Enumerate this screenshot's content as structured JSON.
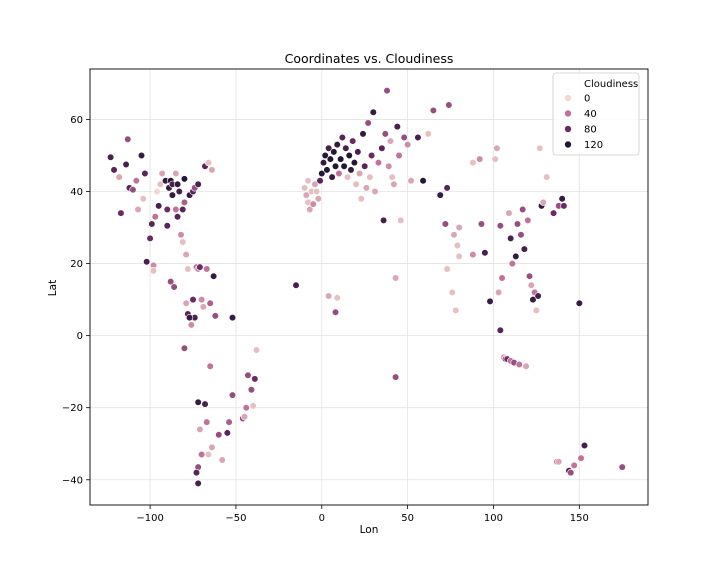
{
  "chart_data": {
    "type": "scatter",
    "title": "Coordinates vs. Cloudiness",
    "xlabel": "Lon",
    "ylabel": "Lat",
    "xlim": [
      -135,
      190
    ],
    "ylim": [
      -47,
      74
    ],
    "xticks": [
      -100,
      -50,
      0,
      50,
      100,
      150
    ],
    "yticks": [
      -40,
      -20,
      0,
      20,
      40,
      60
    ],
    "grid": true,
    "legend": {
      "title": "Cloudiness",
      "placement": "top-right",
      "entries": [
        {
          "label": "0",
          "value": 0
        },
        {
          "label": "40",
          "value": 40
        },
        {
          "label": "80",
          "value": 80
        },
        {
          "label": "120",
          "value": 120
        }
      ]
    },
    "hue_scale": {
      "min": 0,
      "max": 120,
      "colors": [
        "#f3d8cf",
        "#c2719a",
        "#6a2a63",
        "#231638"
      ]
    },
    "points": [
      {
        "x": -123,
        "y": 49.5,
        "c": 100
      },
      {
        "x": -121,
        "y": 46,
        "c": 90
      },
      {
        "x": -118,
        "y": 44,
        "c": 20
      },
      {
        "x": -117,
        "y": 34,
        "c": 80
      },
      {
        "x": -114,
        "y": 47.5,
        "c": 100
      },
      {
        "x": -113,
        "y": 54.5,
        "c": 60
      },
      {
        "x": -112,
        "y": 41,
        "c": 90
      },
      {
        "x": -110,
        "y": 40.5,
        "c": 60
      },
      {
        "x": -108,
        "y": 43,
        "c": 40
      },
      {
        "x": -107,
        "y": 35,
        "c": 20
      },
      {
        "x": -105,
        "y": 50,
        "c": 110
      },
      {
        "x": -104,
        "y": 38,
        "c": 10
      },
      {
        "x": -103,
        "y": 45,
        "c": 90
      },
      {
        "x": -102,
        "y": 20.5,
        "c": 100
      },
      {
        "x": -100,
        "y": 27,
        "c": 80
      },
      {
        "x": -99,
        "y": 31,
        "c": 90
      },
      {
        "x": -98,
        "y": 19.5,
        "c": 30
      },
      {
        "x": -98,
        "y": 18,
        "c": 10
      },
      {
        "x": -97,
        "y": 33,
        "c": 40
      },
      {
        "x": -96,
        "y": 40,
        "c": 0
      },
      {
        "x": -95,
        "y": 36,
        "c": 100
      },
      {
        "x": -94,
        "y": 42,
        "c": 10
      },
      {
        "x": -93,
        "y": 45,
        "c": 20
      },
      {
        "x": -91,
        "y": 43,
        "c": 110
      },
      {
        "x": -90,
        "y": 35,
        "c": 80
      },
      {
        "x": -90,
        "y": 30.5,
        "c": 90
      },
      {
        "x": -89,
        "y": 41,
        "c": 110
      },
      {
        "x": -88,
        "y": 43,
        "c": 120
      },
      {
        "x": -88,
        "y": 15,
        "c": 60
      },
      {
        "x": -87,
        "y": 42,
        "c": 100
      },
      {
        "x": -87,
        "y": 39,
        "c": 110
      },
      {
        "x": -86,
        "y": 13.5,
        "c": 60
      },
      {
        "x": -85,
        "y": 45,
        "c": 20
      },
      {
        "x": -85,
        "y": 35,
        "c": 40
      },
      {
        "x": -84,
        "y": 42,
        "c": 110
      },
      {
        "x": -84,
        "y": 33,
        "c": 90
      },
      {
        "x": -83,
        "y": 40,
        "c": 100
      },
      {
        "x": -82,
        "y": 28,
        "c": 30
      },
      {
        "x": -81,
        "y": 26,
        "c": 10
      },
      {
        "x": -81,
        "y": 35,
        "c": 90
      },
      {
        "x": -80,
        "y": 43.5,
        "c": 120
      },
      {
        "x": -80,
        "y": 37,
        "c": 50
      },
      {
        "x": -79,
        "y": 22.5,
        "c": 20
      },
      {
        "x": -78,
        "y": 18.5,
        "c": 10
      },
      {
        "x": -77,
        "y": 39,
        "c": 110
      },
      {
        "x": -76,
        "y": 3,
        "c": 30
      },
      {
        "x": -75,
        "y": 40,
        "c": 90
      },
      {
        "x": -75,
        "y": 10,
        "c": 80
      },
      {
        "x": -74,
        "y": 41,
        "c": 60
      },
      {
        "x": -74,
        "y": 5,
        "c": 100
      },
      {
        "x": -73,
        "y": 19,
        "c": 40
      },
      {
        "x": -72,
        "y": 18.5,
        "c": 30
      },
      {
        "x": -72,
        "y": 42,
        "c": 100
      },
      {
        "x": -71,
        "y": 19,
        "c": 80
      },
      {
        "x": -70,
        "y": 10,
        "c": 30
      },
      {
        "x": -70,
        "y": -33,
        "c": 100
      },
      {
        "x": -69,
        "y": 8,
        "c": 20
      },
      {
        "x": -68,
        "y": 47,
        "c": 90
      },
      {
        "x": -67,
        "y": 18.5,
        "c": 40
      },
      {
        "x": -66,
        "y": 48,
        "c": 10
      },
      {
        "x": -65,
        "y": 9,
        "c": 50
      },
      {
        "x": -64,
        "y": 46,
        "c": 20
      },
      {
        "x": -63,
        "y": 16.5,
        "c": 110
      },
      {
        "x": -62,
        "y": 5.5,
        "c": 60
      },
      {
        "x": -79,
        "y": 9,
        "c": 20
      },
      {
        "x": -78,
        "y": 6,
        "c": 90
      },
      {
        "x": -77,
        "y": 5,
        "c": 110
      },
      {
        "x": -80,
        "y": -3.5,
        "c": 60
      },
      {
        "x": -72,
        "y": -18.5,
        "c": 110
      },
      {
        "x": -71,
        "y": -26,
        "c": 20
      },
      {
        "x": -70,
        "y": -33,
        "c": 40
      },
      {
        "x": -72,
        "y": -36.5,
        "c": 60
      },
      {
        "x": -73,
        "y": -38,
        "c": 90
      },
      {
        "x": -72,
        "y": -41,
        "c": 100
      },
      {
        "x": -68,
        "y": -19,
        "c": 100
      },
      {
        "x": -67,
        "y": -24,
        "c": 40
      },
      {
        "x": -66,
        "y": -33,
        "c": 10
      },
      {
        "x": -64,
        "y": -31,
        "c": 20
      },
      {
        "x": -65,
        "y": -8.5,
        "c": 40
      },
      {
        "x": -60,
        "y": -27.5,
        "c": 60
      },
      {
        "x": -58,
        "y": -34.5,
        "c": 20
      },
      {
        "x": -55,
        "y": -27,
        "c": 90
      },
      {
        "x": -54,
        "y": -24,
        "c": 50
      },
      {
        "x": -52,
        "y": -16.5,
        "c": 60
      },
      {
        "x": -52,
        "y": 5,
        "c": 110
      },
      {
        "x": -46,
        "y": -23,
        "c": 60
      },
      {
        "x": -45,
        "y": -22.5,
        "c": 20
      },
      {
        "x": -44,
        "y": -20,
        "c": 40
      },
      {
        "x": -43,
        "y": -11,
        "c": 60
      },
      {
        "x": -41,
        "y": -15,
        "c": 60
      },
      {
        "x": -40,
        "y": -19.5,
        "c": 10
      },
      {
        "x": -39,
        "y": -12,
        "c": 80
      },
      {
        "x": -38,
        "y": -4,
        "c": 10
      },
      {
        "x": -15,
        "y": 14,
        "c": 100
      },
      {
        "x": 4,
        "y": 11,
        "c": 20
      },
      {
        "x": 9,
        "y": 10.5,
        "c": 10
      },
      {
        "x": 8,
        "y": 6.5,
        "c": 60
      },
      {
        "x": 43,
        "y": -11.5,
        "c": 60
      },
      {
        "x": 43,
        "y": 16,
        "c": 20
      },
      {
        "x": -10,
        "y": 41,
        "c": 10
      },
      {
        "x": -9,
        "y": 39,
        "c": 20
      },
      {
        "x": -8,
        "y": 43,
        "c": 10
      },
      {
        "x": -8,
        "y": 37,
        "c": 10
      },
      {
        "x": -7,
        "y": 35,
        "c": 20
      },
      {
        "x": -6,
        "y": 40,
        "c": 10
      },
      {
        "x": -5,
        "y": 36.5,
        "c": 30
      },
      {
        "x": -4,
        "y": 42,
        "c": 20
      },
      {
        "x": -3,
        "y": 40,
        "c": 10
      },
      {
        "x": -2,
        "y": 38,
        "c": 20
      },
      {
        "x": -1,
        "y": 43,
        "c": 90
      },
      {
        "x": 0,
        "y": 45,
        "c": 120
      },
      {
        "x": 1,
        "y": 48,
        "c": 110
      },
      {
        "x": 2,
        "y": 50,
        "c": 120
      },
      {
        "x": 3,
        "y": 46,
        "c": 120
      },
      {
        "x": 4,
        "y": 52,
        "c": 100
      },
      {
        "x": 5,
        "y": 49,
        "c": 120
      },
      {
        "x": 6,
        "y": 44,
        "c": 110
      },
      {
        "x": 7,
        "y": 51,
        "c": 120
      },
      {
        "x": 8,
        "y": 47,
        "c": 120
      },
      {
        "x": 9,
        "y": 53,
        "c": 110
      },
      {
        "x": 10,
        "y": 45,
        "c": 40
      },
      {
        "x": 11,
        "y": 49,
        "c": 120
      },
      {
        "x": 12,
        "y": 55,
        "c": 90
      },
      {
        "x": 13,
        "y": 47,
        "c": 120
      },
      {
        "x": 14,
        "y": 52,
        "c": 100
      },
      {
        "x": 15,
        "y": 44,
        "c": 10
      },
      {
        "x": 16,
        "y": 50,
        "c": 120
      },
      {
        "x": 17,
        "y": 46,
        "c": 110
      },
      {
        "x": 18,
        "y": 54,
        "c": 80
      },
      {
        "x": 19,
        "y": 48,
        "c": 120
      },
      {
        "x": 20,
        "y": 42,
        "c": 10
      },
      {
        "x": 21,
        "y": 51,
        "c": 100
      },
      {
        "x": 22,
        "y": 45,
        "c": 20
      },
      {
        "x": 23,
        "y": 38,
        "c": 10
      },
      {
        "x": 24,
        "y": 56,
        "c": 110
      },
      {
        "x": 25,
        "y": 47,
        "c": 90
      },
      {
        "x": 26,
        "y": 41,
        "c": 20
      },
      {
        "x": 27,
        "y": 59,
        "c": 60
      },
      {
        "x": 28,
        "y": 44,
        "c": 10
      },
      {
        "x": 29,
        "y": 50,
        "c": 80
      },
      {
        "x": 30,
        "y": 62,
        "c": 110
      },
      {
        "x": 31,
        "y": 40,
        "c": 20
      },
      {
        "x": 33,
        "y": 48,
        "c": 40
      },
      {
        "x": 35,
        "y": 52,
        "c": 90
      },
      {
        "x": 36,
        "y": 32,
        "c": 100
      },
      {
        "x": 37,
        "y": 56,
        "c": 60
      },
      {
        "x": 38,
        "y": 68,
        "c": 60
      },
      {
        "x": 39,
        "y": 47,
        "c": 30
      },
      {
        "x": 40,
        "y": 54,
        "c": 20
      },
      {
        "x": 41,
        "y": 44,
        "c": 10
      },
      {
        "x": 42,
        "y": 42,
        "c": 20
      },
      {
        "x": 44,
        "y": 58,
        "c": 100
      },
      {
        "x": 45,
        "y": 50,
        "c": 40
      },
      {
        "x": 46,
        "y": 32,
        "c": 10
      },
      {
        "x": 48,
        "y": 55,
        "c": 60
      },
      {
        "x": 50,
        "y": 53,
        "c": 30
      },
      {
        "x": 52,
        "y": 43,
        "c": 20
      },
      {
        "x": 56,
        "y": 55,
        "c": 100
      },
      {
        "x": 59,
        "y": 43,
        "c": 120
      },
      {
        "x": 62,
        "y": 56,
        "c": 10
      },
      {
        "x": 65,
        "y": 62.5,
        "c": 60
      },
      {
        "x": 69,
        "y": 39,
        "c": 110
      },
      {
        "x": 73,
        "y": 41,
        "c": 90
      },
      {
        "x": 74,
        "y": 64,
        "c": 60
      },
      {
        "x": 72,
        "y": 31,
        "c": 60
      },
      {
        "x": 73,
        "y": 18.5,
        "c": 10
      },
      {
        "x": 76,
        "y": 12,
        "c": 10
      },
      {
        "x": 77,
        "y": 28,
        "c": 20
      },
      {
        "x": 78,
        "y": 7,
        "c": 10
      },
      {
        "x": 79,
        "y": 25,
        "c": 10
      },
      {
        "x": 80,
        "y": 30,
        "c": 20
      },
      {
        "x": 80,
        "y": 22,
        "c": 10
      },
      {
        "x": 88,
        "y": 48,
        "c": 10
      },
      {
        "x": 88,
        "y": 22.5,
        "c": 30
      },
      {
        "x": 92,
        "y": 49,
        "c": 30
      },
      {
        "x": 93,
        "y": 31,
        "c": 60
      },
      {
        "x": 95,
        "y": 23,
        "c": 100
      },
      {
        "x": 98,
        "y": 9.5,
        "c": 110
      },
      {
        "x": 101,
        "y": 49,
        "c": 10
      },
      {
        "x": 102,
        "y": 52,
        "c": 20
      },
      {
        "x": 104,
        "y": 30.5,
        "c": 60
      },
      {
        "x": 103,
        "y": 12,
        "c": 20
      },
      {
        "x": 104,
        "y": 1.5,
        "c": 90
      },
      {
        "x": 105,
        "y": 16,
        "c": 40
      },
      {
        "x": 106,
        "y": -6,
        "c": 20
      },
      {
        "x": 107,
        "y": -6.5,
        "c": 60
      },
      {
        "x": 108,
        "y": -6.5,
        "c": 80
      },
      {
        "x": 109,
        "y": 34,
        "c": 20
      },
      {
        "x": 110,
        "y": 27,
        "c": 100
      },
      {
        "x": 110,
        "y": -7,
        "c": 40
      },
      {
        "x": 111,
        "y": 20,
        "c": 40
      },
      {
        "x": 112,
        "y": -7.5,
        "c": 60
      },
      {
        "x": 113,
        "y": 22,
        "c": 110
      },
      {
        "x": 114,
        "y": 31,
        "c": 60
      },
      {
        "x": 115,
        "y": -8,
        "c": 40
      },
      {
        "x": 116,
        "y": 28,
        "c": 60
      },
      {
        "x": 117,
        "y": 35,
        "c": 60
      },
      {
        "x": 118,
        "y": 24,
        "c": 100
      },
      {
        "x": 119,
        "y": -8.5,
        "c": 20
      },
      {
        "x": 120,
        "y": 32,
        "c": 40
      },
      {
        "x": 121,
        "y": 16.5,
        "c": 60
      },
      {
        "x": 122,
        "y": 14,
        "c": 20
      },
      {
        "x": 123,
        "y": 10,
        "c": 110
      },
      {
        "x": 124,
        "y": 12,
        "c": 40
      },
      {
        "x": 125,
        "y": 7,
        "c": 10
      },
      {
        "x": 126,
        "y": 11,
        "c": 100
      },
      {
        "x": 127,
        "y": 52,
        "c": 10
      },
      {
        "x": 128,
        "y": 36,
        "c": 110
      },
      {
        "x": 129,
        "y": 37,
        "c": 20
      },
      {
        "x": 131,
        "y": 44,
        "c": 10
      },
      {
        "x": 135,
        "y": 34,
        "c": 80
      },
      {
        "x": 138,
        "y": 36,
        "c": 60
      },
      {
        "x": 140,
        "y": 38,
        "c": 110
      },
      {
        "x": 141,
        "y": 36,
        "c": 80
      },
      {
        "x": 137,
        "y": -35,
        "c": 40
      },
      {
        "x": 138,
        "y": -35,
        "c": 20
      },
      {
        "x": 144,
        "y": -37.5,
        "c": 100
      },
      {
        "x": 145,
        "y": -38,
        "c": 60
      },
      {
        "x": 147,
        "y": -36,
        "c": 40
      },
      {
        "x": 150,
        "y": 9,
        "c": 110
      },
      {
        "x": 151,
        "y": -34,
        "c": 40
      },
      {
        "x": 153,
        "y": -30.5,
        "c": 100
      },
      {
        "x": 175,
        "y": -36.5,
        "c": 60
      }
    ]
  }
}
